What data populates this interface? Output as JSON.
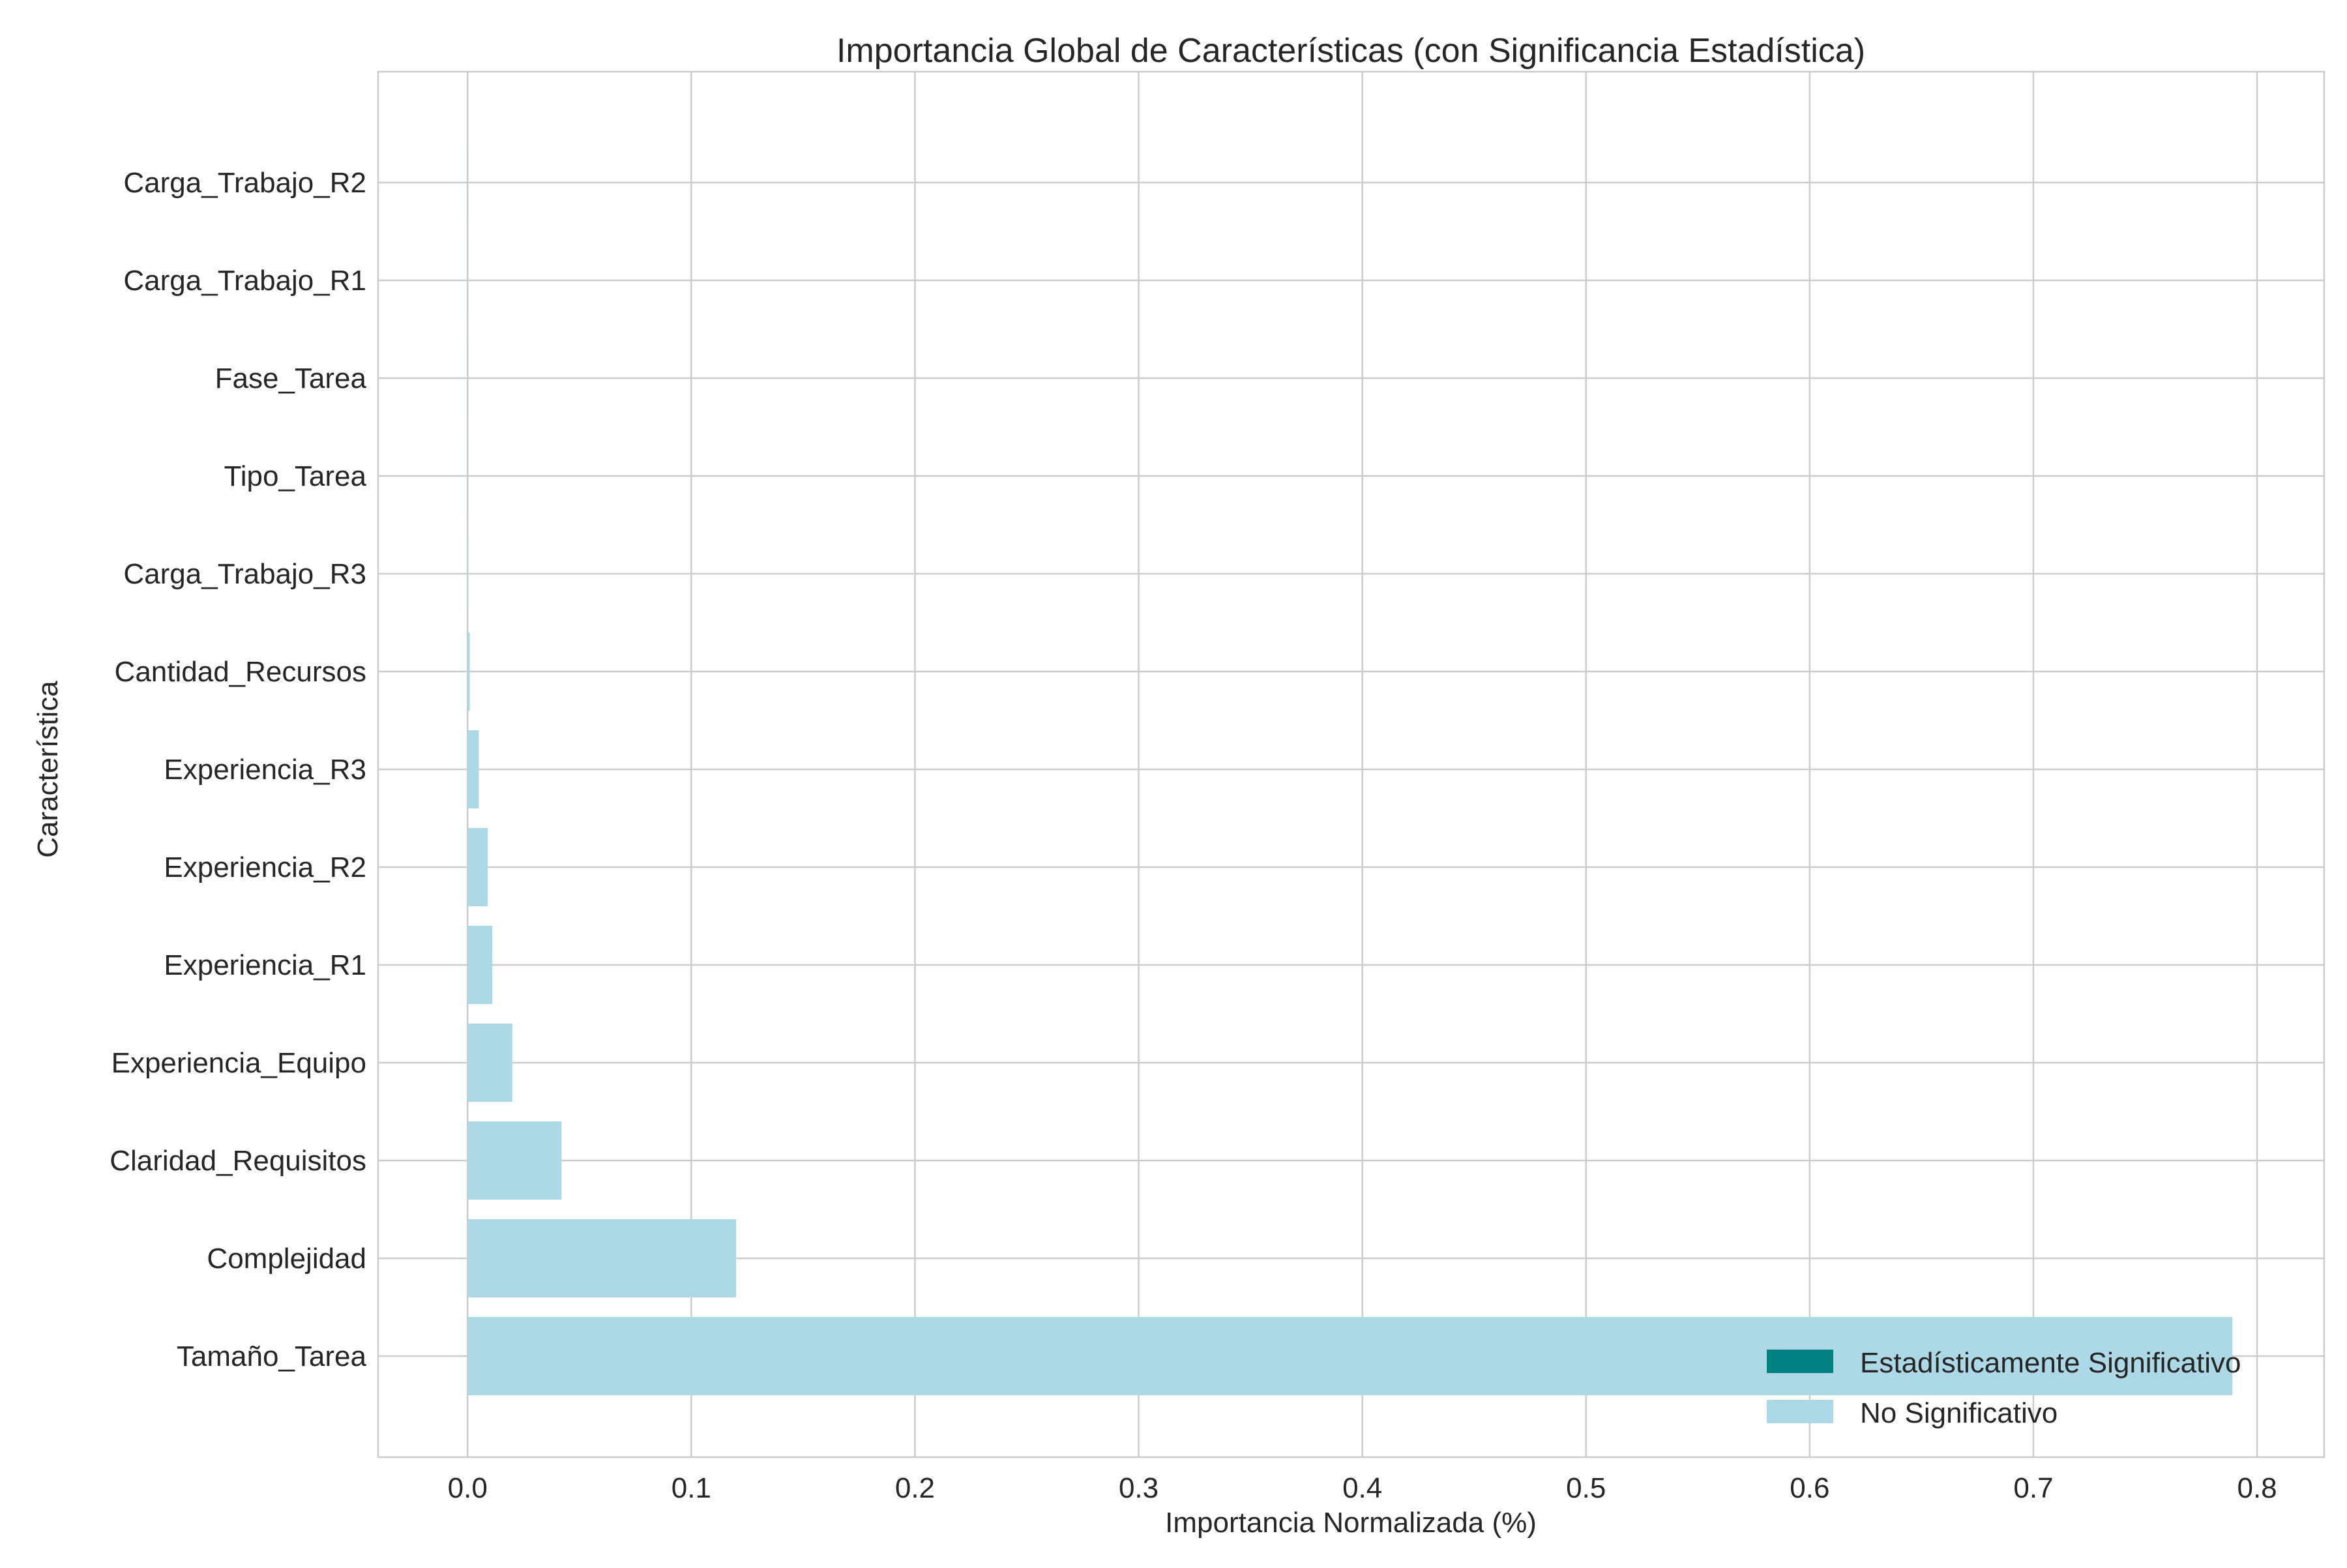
{
  "chart_data": {
    "type": "bar",
    "orientation": "horizontal",
    "title": "Importancia Global de Características (con Significancia Estadística)",
    "xlabel": "Importancia Normalizada (%)",
    "ylabel": "Característica",
    "xlim": [
      -0.04,
      0.83
    ],
    "xticks": [
      0.0,
      0.1,
      0.2,
      0.3,
      0.4,
      0.5,
      0.6,
      0.7,
      0.8
    ],
    "xtick_labels": [
      "0.0",
      "0.1",
      "0.2",
      "0.3",
      "0.4",
      "0.5",
      "0.6",
      "0.7",
      "0.8"
    ],
    "categories": [
      "Tamaño_Tarea",
      "Complejidad",
      "Claridad_Requisitos",
      "Experiencia_Equipo",
      "Experiencia_R1",
      "Experiencia_R2",
      "Experiencia_R3",
      "Cantidad_Recursos",
      "Carga_Trabajo_R3",
      "Tipo_Tarea",
      "Fase_Tarea",
      "Carga_Trabajo_R1",
      "Carga_Trabajo_R2"
    ],
    "values": [
      0.789,
      0.12,
      0.042,
      0.02,
      0.011,
      0.009,
      0.005,
      0.001,
      0.0003,
      0.0001,
      0.0,
      0.0,
      0.0
    ],
    "significant": [
      false,
      false,
      false,
      false,
      false,
      false,
      false,
      false,
      false,
      false,
      false,
      false,
      false
    ],
    "grid": true,
    "legend_position": "bottom-right",
    "legend": [
      {
        "label": "Estadísticamente Significativo",
        "color": "#008080"
      },
      {
        "label": "No Significativo",
        "color": "#add8e6"
      }
    ]
  }
}
